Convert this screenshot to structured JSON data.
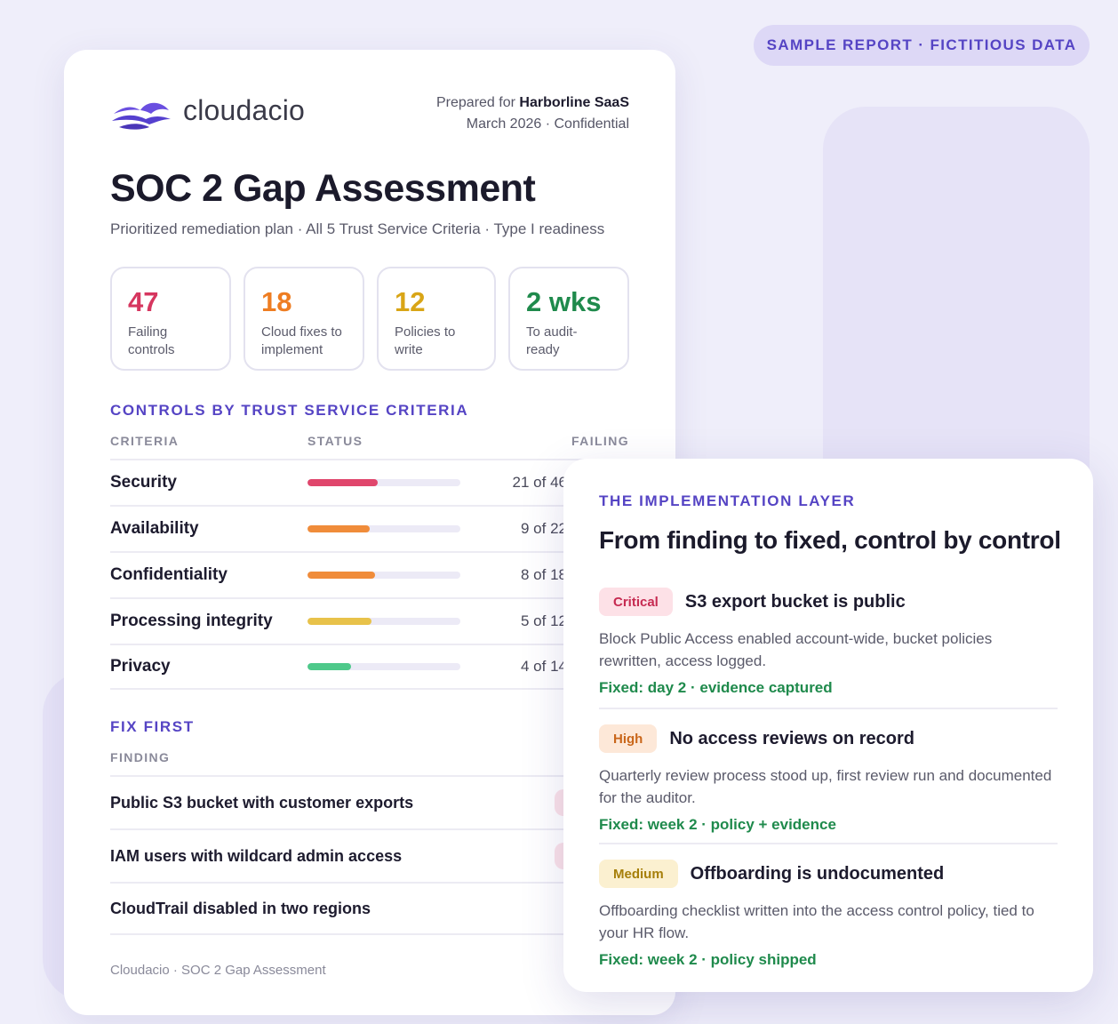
{
  "badge": "SAMPLE REPORT · FICTITIOUS DATA",
  "report": {
    "brand": "cloudacio",
    "prepared_prefix": "Prepared for",
    "client": "Harborline SaaS",
    "date_line": "March 2026 · Confidential",
    "title": "SOC 2 Gap Assessment",
    "subtitle": "Prioritized remediation plan · All 5 Trust Service Criteria · Type I readiness",
    "stats": [
      {
        "value": "47",
        "label": "Failing controls",
        "color": "#d6365f"
      },
      {
        "value": "18",
        "label": "Cloud fixes to implement",
        "color": "#ee7d22"
      },
      {
        "value": "12",
        "label": "Policies to write",
        "color": "#d9a516"
      },
      {
        "value": "2 wks",
        "label": "To audit-ready",
        "color": "#1f8a4c"
      }
    ],
    "criteria_heading": "CONTROLS BY TRUST SERVICE CRITERIA",
    "criteria_columns": {
      "criteria": "CRITERIA",
      "status": "STATUS",
      "failing": "FAILING"
    },
    "criteria": [
      {
        "name": "Security",
        "failing": "21 of 46",
        "ratio": 0.4565,
        "color": "#e0466c"
      },
      {
        "name": "Availability",
        "failing": "9 of 22",
        "ratio": 0.409,
        "color": "#f08c3a"
      },
      {
        "name": "Confidentiality",
        "failing": "8 of 18",
        "ratio": 0.444,
        "color": "#f08c3a"
      },
      {
        "name": "Processing integrity",
        "failing": "5 of 12",
        "ratio": 0.417,
        "color": "#e8c24a"
      },
      {
        "name": "Privacy",
        "failing": "4 of 14",
        "ratio": 0.286,
        "color": "#4ec98a"
      }
    ],
    "fix_heading": "FIX FIRST",
    "fix_column": "FINDING",
    "findings": [
      "Public S3 bucket with customer exports",
      "IAM users with wildcard admin access",
      "CloudTrail disabled in two regions"
    ],
    "footer": "Cloudacio · SOC 2 Gap Assessment"
  },
  "impl": {
    "eyebrow": "THE IMPLEMENTATION LAYER",
    "title": "From finding to fixed, control by control",
    "items": [
      {
        "severity": "Critical",
        "sev_bg": "#fde1e7",
        "sev_color": "#c62a51",
        "title": "S3 export bucket is public",
        "desc": "Block Public Access enabled account-wide, bucket policies rewritten, access logged.",
        "fix": "Fixed: day 2 · evidence captured"
      },
      {
        "severity": "High",
        "sev_bg": "#fde8d8",
        "sev_color": "#c9661a",
        "title": "No access reviews on record",
        "desc": "Quarterly review process stood up, first review run and documented for the auditor.",
        "fix": "Fixed: week 2 · policy + evidence"
      },
      {
        "severity": "Medium",
        "sev_bg": "#fbf0d0",
        "sev_color": "#a67f0a",
        "title": "Offboarding is undocumented",
        "desc": "Offboarding checklist written into the access control policy, tied to your HR flow.",
        "fix": "Fixed: week 2 · policy shipped"
      }
    ]
  }
}
